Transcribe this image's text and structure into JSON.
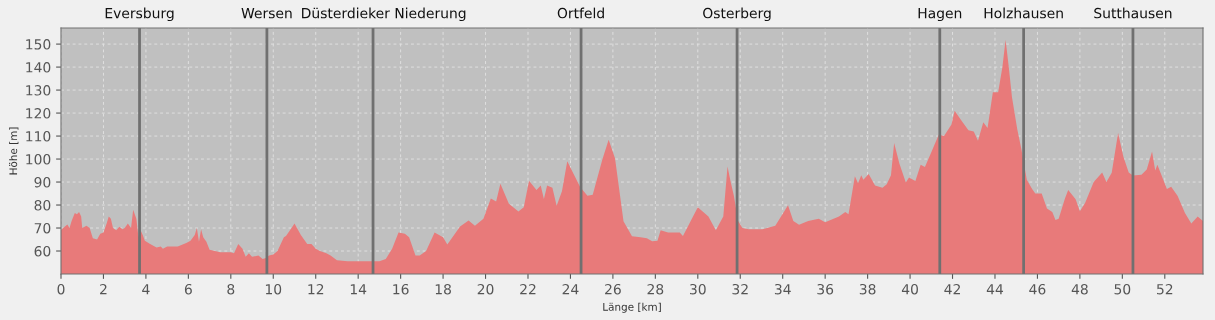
{
  "chart_data": {
    "type": "area",
    "xlabel": "Länge [km]",
    "ylabel": "Höhe [m]",
    "xlim": [
      0,
      53.8
    ],
    "ylim": [
      50,
      157
    ],
    "xticks": [
      0,
      2,
      4,
      6,
      8,
      10,
      12,
      14,
      16,
      18,
      20,
      22,
      24,
      26,
      28,
      30,
      32,
      34,
      36,
      38,
      40,
      42,
      44,
      46,
      48,
      50,
      52
    ],
    "yticks": [
      60,
      70,
      80,
      90,
      100,
      110,
      120,
      130,
      140,
      150
    ],
    "grid": true,
    "series": [
      {
        "color": "#e87a7a",
        "x": [
          0,
          0.1,
          0.3,
          0.4,
          0.5,
          0.65,
          0.75,
          0.85,
          0.95,
          1.0,
          1.2,
          1.35,
          1.5,
          1.7,
          1.85,
          2.0,
          2.15,
          2.25,
          2.35,
          2.45,
          2.6,
          2.75,
          2.9,
          3.0,
          3.15,
          3.3,
          3.4,
          3.55,
          3.65,
          3.75,
          3.85,
          3.95,
          4.2,
          4.5,
          4.7,
          4.8,
          5.0,
          5.5,
          5.9,
          6.1,
          6.3,
          6.4,
          6.5,
          6.6,
          6.7,
          6.85,
          7.0,
          7.5,
          8.0,
          8.15,
          8.35,
          8.55,
          8.7,
          8.85,
          9.0,
          9.3,
          9.5,
          9.65,
          9.8,
          10.0,
          10.2,
          10.5,
          10.6,
          10.9,
          11.0,
          11.3,
          11.6,
          11.8,
          12.0,
          12.2,
          12.5,
          12.7,
          13.0,
          13.5,
          14.0,
          14.5,
          15.0,
          15.3,
          15.6,
          15.9,
          16.2,
          16.4,
          16.7,
          16.9,
          17.2,
          17.6,
          18.0,
          18.2,
          18.8,
          19.2,
          19.5,
          19.9,
          20.25,
          20.5,
          20.7,
          21.1,
          21.55,
          21.8,
          22.05,
          22.4,
          22.6,
          22.75,
          22.9,
          23.15,
          23.35,
          23.6,
          23.85,
          24.45,
          24.8,
          25.05,
          25.5,
          25.8,
          26.1,
          26.5,
          26.9,
          27.3,
          27.6,
          27.85,
          28.1,
          28.25,
          28.6,
          29.15,
          29.3,
          30.0,
          30.5,
          30.85,
          31.2,
          31.4,
          31.55,
          31.7,
          31.9,
          32.1,
          32.4,
          33.05,
          33.65,
          34.25,
          34.5,
          34.77,
          35.2,
          35.7,
          36.0,
          36.65,
          36.95,
          37.1,
          37.4,
          37.55,
          37.7,
          37.8,
          38.05,
          38.35,
          38.7,
          38.9,
          39.1,
          39.25,
          39.5,
          39.8,
          39.95,
          40.25,
          40.5,
          40.7,
          41.0,
          41.35,
          41.6,
          41.95,
          42.1,
          42.4,
          42.75,
          43.0,
          43.2,
          43.45,
          43.65,
          43.9,
          44.15,
          44.35,
          44.5,
          44.65,
          44.8,
          45.05,
          45.25,
          45.5,
          45.75,
          45.9,
          46.2,
          46.45,
          46.7,
          46.85,
          47.0,
          47.3,
          47.45,
          47.8,
          48.0,
          48.25,
          48.65,
          49.05,
          49.25,
          49.5,
          49.8,
          50.05,
          50.3,
          50.5,
          50.9,
          51.15,
          51.4,
          51.55,
          51.65,
          52.1,
          52.3,
          52.6,
          52.95,
          53.25,
          53.55,
          53.8
        ],
        "values": [
          69,
          70,
          71.5,
          70,
          73,
          76.5,
          76,
          77,
          75,
          70,
          71,
          70,
          65.5,
          65,
          67.5,
          68,
          72,
          75,
          74,
          70,
          69,
          70.5,
          69.5,
          70,
          72,
          70,
          78,
          74,
          66,
          69,
          67,
          64.5,
          63,
          61.5,
          62,
          61,
          62,
          62,
          63.5,
          64.5,
          67,
          70,
          64,
          69.5,
          66,
          64,
          60.5,
          59.5,
          59.5,
          59,
          63,
          61,
          57.5,
          59,
          57.5,
          58,
          56.5,
          57,
          58,
          58.5,
          60,
          66,
          66.5,
          70.5,
          72,
          67,
          63,
          63,
          61,
          60,
          59,
          58,
          56,
          55.5,
          55.5,
          55.5,
          55.5,
          56.5,
          61,
          68,
          67.5,
          66,
          58,
          58,
          60,
          68,
          66,
          62.8,
          70.7,
          73.3,
          71,
          74,
          82.8,
          81.5,
          89.3,
          80.6,
          77.2,
          79,
          90.6,
          86.5,
          88.5,
          82.6,
          88.5,
          87.5,
          79.7,
          86,
          99,
          88,
          84,
          84.5,
          99.7,
          108.4,
          100.4,
          72.9,
          66.4,
          66,
          65.5,
          64.2,
          64.5,
          69,
          68,
          68,
          66.5,
          79,
          75,
          69,
          75,
          96.8,
          90,
          84,
          73,
          70,
          69.5,
          69.5,
          71,
          79.9,
          73,
          71.4,
          73,
          74,
          72.5,
          75,
          77,
          76,
          92.5,
          89.5,
          93,
          91,
          93.5,
          88.5,
          87.5,
          89,
          93,
          107,
          98,
          89.8,
          92,
          90.5,
          97.5,
          96.5,
          103,
          110.6,
          110,
          115,
          121,
          117,
          112.5,
          112,
          108,
          116,
          113.5,
          129,
          129,
          140,
          151.9,
          140,
          127,
          113,
          104,
          91,
          87,
          85,
          85,
          78.5,
          77,
          73.5,
          74,
          83,
          86.5,
          82.5,
          77.3,
          81,
          90,
          94.2,
          90,
          94,
          111.3,
          101,
          94.2,
          92.8,
          93.2,
          95.5,
          103.3,
          95,
          97.5,
          87,
          88,
          84,
          76.5,
          72,
          75,
          73
        ]
      }
    ],
    "ref_lines": [
      {
        "axis": "x",
        "value": 3.7,
        "label": "Eversburg",
        "color": "#707070"
      },
      {
        "axis": "x",
        "value": 9.7,
        "label": "Wersen",
        "color": "#707070"
      },
      {
        "axis": "x",
        "value": 14.7,
        "label": "Düsterdieker Niederung",
        "color": "#707070"
      },
      {
        "axis": "x",
        "value": 24.5,
        "label": "Ortfeld",
        "color": "#707070"
      },
      {
        "axis": "x",
        "value": 31.85,
        "label": "Osterberg",
        "color": "#707070"
      },
      {
        "axis": "x",
        "value": 41.4,
        "label": "Hagen",
        "color": "#707070"
      },
      {
        "axis": "x",
        "value": 45.35,
        "label": "Holzhausen",
        "color": "#707070"
      },
      {
        "axis": "x",
        "value": 50.5,
        "label": "Sutthausen",
        "color": "#707070"
      }
    ]
  }
}
